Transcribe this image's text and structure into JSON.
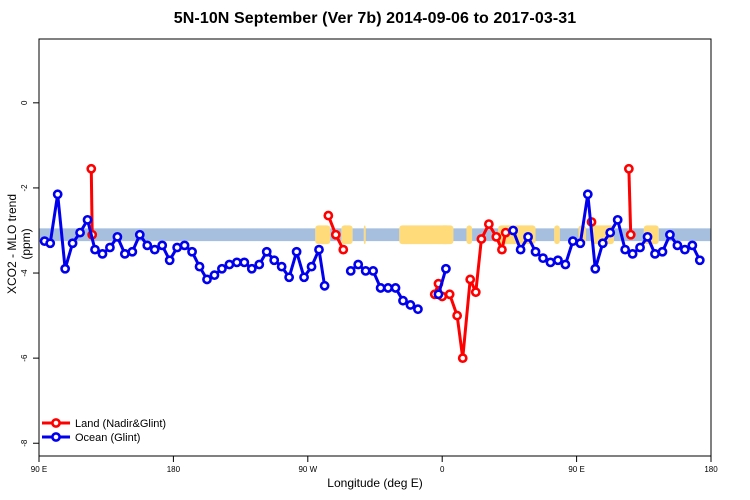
{
  "chart_data": {
    "type": "line",
    "title": "5N-10N September (Ver 7b)   2014-09-06 to 2017-03-31",
    "xlabel": "Longitude (deg E)",
    "ylabel": "XCO2 - MLO trend (ppm)",
    "xlim": [
      90,
      450
    ],
    "ylim": [
      -8.3,
      1.5
    ],
    "x_ticks": [
      {
        "value": 90,
        "label": "90 E"
      },
      {
        "value": 162,
        "label": "180"
      },
      {
        "value": 234,
        "label": "90 W"
      },
      {
        "value": 306,
        "label": "0"
      },
      {
        "value": 378,
        "label": "90 E"
      },
      {
        "value": 450,
        "label": "180"
      }
    ],
    "y_ticks": [
      {
        "value": 0,
        "label": "0"
      },
      {
        "value": -2,
        "label": "-2"
      },
      {
        "value": -4,
        "label": "-4"
      },
      {
        "value": -6,
        "label": "-6"
      },
      {
        "value": -8,
        "label": "-8"
      }
    ],
    "grid": false,
    "legend_position": "bottom-left",
    "band": {
      "y_from": -3.25,
      "y_to": -2.95,
      "color": "#a7bfdf"
    },
    "land_color": "#ffdb7a",
    "land_regions": [
      {
        "x_from": 238,
        "x_to": 246
      },
      {
        "x_from": 252,
        "x_to": 258
      },
      {
        "x_from": 264,
        "x_to": 265
      },
      {
        "x_from": 283,
        "x_to": 310
      },
      {
        "x_from": 305,
        "x_to": 312
      },
      {
        "x_from": 319,
        "x_to": 322
      },
      {
        "x_from": 336,
        "x_to": 356
      },
      {
        "x_from": 366,
        "x_to": 369
      },
      {
        "x_from": 379,
        "x_to": 383
      },
      {
        "x_from": 386,
        "x_to": 398
      },
      {
        "x_from": 414,
        "x_to": 422
      }
    ],
    "series": [
      {
        "name": "Land (Nadir&Glint)",
        "color": "#ff0000",
        "segments": [
          [
            [
              118,
              -1.55
            ],
            [
              118.5,
              -3.1
            ]
          ],
          [
            [
              245,
              -2.65
            ],
            [
              249,
              -3.1
            ],
            [
              253,
              -3.45
            ]
          ],
          [
            [
              302,
              -4.5
            ],
            [
              304,
              -4.25
            ],
            [
              306,
              -4.55
            ],
            [
              310,
              -4.5
            ],
            [
              314,
              -5.0
            ],
            [
              317,
              -6.0
            ],
            [
              321,
              -4.15
            ],
            [
              324,
              -4.45
            ],
            [
              327,
              -3.2
            ],
            [
              331,
              -2.85
            ],
            [
              335,
              -3.15
            ],
            [
              338,
              -3.45
            ],
            [
              340,
              -3.05
            ]
          ],
          [
            [
              386,
              -2.8
            ]
          ],
          [
            [
              406,
              -1.55
            ],
            [
              407,
              -3.1
            ]
          ]
        ]
      },
      {
        "name": "Ocean (Glint)",
        "color": "#0000ee",
        "segments": [
          [
            [
              93,
              -3.25
            ],
            [
              96,
              -3.3
            ],
            [
              100,
              -2.15
            ],
            [
              104,
              -3.9
            ],
            [
              108,
              -3.3
            ],
            [
              112,
              -3.05
            ],
            [
              116,
              -2.75
            ],
            [
              120,
              -3.45
            ],
            [
              124,
              -3.55
            ],
            [
              128,
              -3.4
            ],
            [
              132,
              -3.15
            ],
            [
              136,
              -3.55
            ],
            [
              140,
              -3.5
            ],
            [
              144,
              -3.1
            ],
            [
              148,
              -3.35
            ],
            [
              152,
              -3.45
            ],
            [
              156,
              -3.35
            ],
            [
              160,
              -3.7
            ],
            [
              164,
              -3.4
            ],
            [
              168,
              -3.35
            ],
            [
              172,
              -3.5
            ],
            [
              176,
              -3.85
            ],
            [
              180,
              -4.15
            ],
            [
              184,
              -4.05
            ],
            [
              188,
              -3.9
            ],
            [
              192,
              -3.8
            ],
            [
              196,
              -3.75
            ],
            [
              200,
              -3.75
            ],
            [
              204,
              -3.9
            ],
            [
              208,
              -3.8
            ],
            [
              212,
              -3.5
            ],
            [
              216,
              -3.7
            ],
            [
              220,
              -3.85
            ],
            [
              224,
              -4.1
            ],
            [
              228,
              -3.5
            ],
            [
              232,
              -4.1
            ],
            [
              236,
              -3.85
            ],
            [
              240,
              -3.45
            ],
            [
              243,
              -4.3
            ]
          ],
          [
            [
              257,
              -3.95
            ],
            [
              261,
              -3.8
            ],
            [
              265,
              -3.95
            ],
            [
              269,
              -3.95
            ],
            [
              273,
              -4.35
            ],
            [
              277,
              -4.35
            ],
            [
              281,
              -4.35
            ],
            [
              285,
              -4.65
            ],
            [
              289,
              -4.75
            ],
            [
              293,
              -4.85
            ]
          ],
          [
            [
              304,
              -4.5
            ],
            [
              308,
              -3.9
            ]
          ],
          [
            [
              344,
              -3.0
            ],
            [
              348,
              -3.45
            ],
            [
              352,
              -3.15
            ],
            [
              356,
              -3.5
            ],
            [
              360,
              -3.65
            ],
            [
              364,
              -3.75
            ],
            [
              368,
              -3.7
            ],
            [
              372,
              -3.8
            ],
            [
              376,
              -3.25
            ],
            [
              380,
              -3.3
            ],
            [
              384,
              -2.15
            ],
            [
              388,
              -3.9
            ],
            [
              392,
              -3.3
            ],
            [
              396,
              -3.05
            ],
            [
              400,
              -2.75
            ],
            [
              404,
              -3.45
            ],
            [
              408,
              -3.55
            ],
            [
              412,
              -3.4
            ],
            [
              416,
              -3.15
            ],
            [
              420,
              -3.55
            ],
            [
              424,
              -3.5
            ],
            [
              428,
              -3.1
            ],
            [
              432,
              -3.35
            ],
            [
              436,
              -3.45
            ],
            [
              440,
              -3.35
            ],
            [
              444,
              -3.7
            ]
          ]
        ]
      }
    ]
  }
}
